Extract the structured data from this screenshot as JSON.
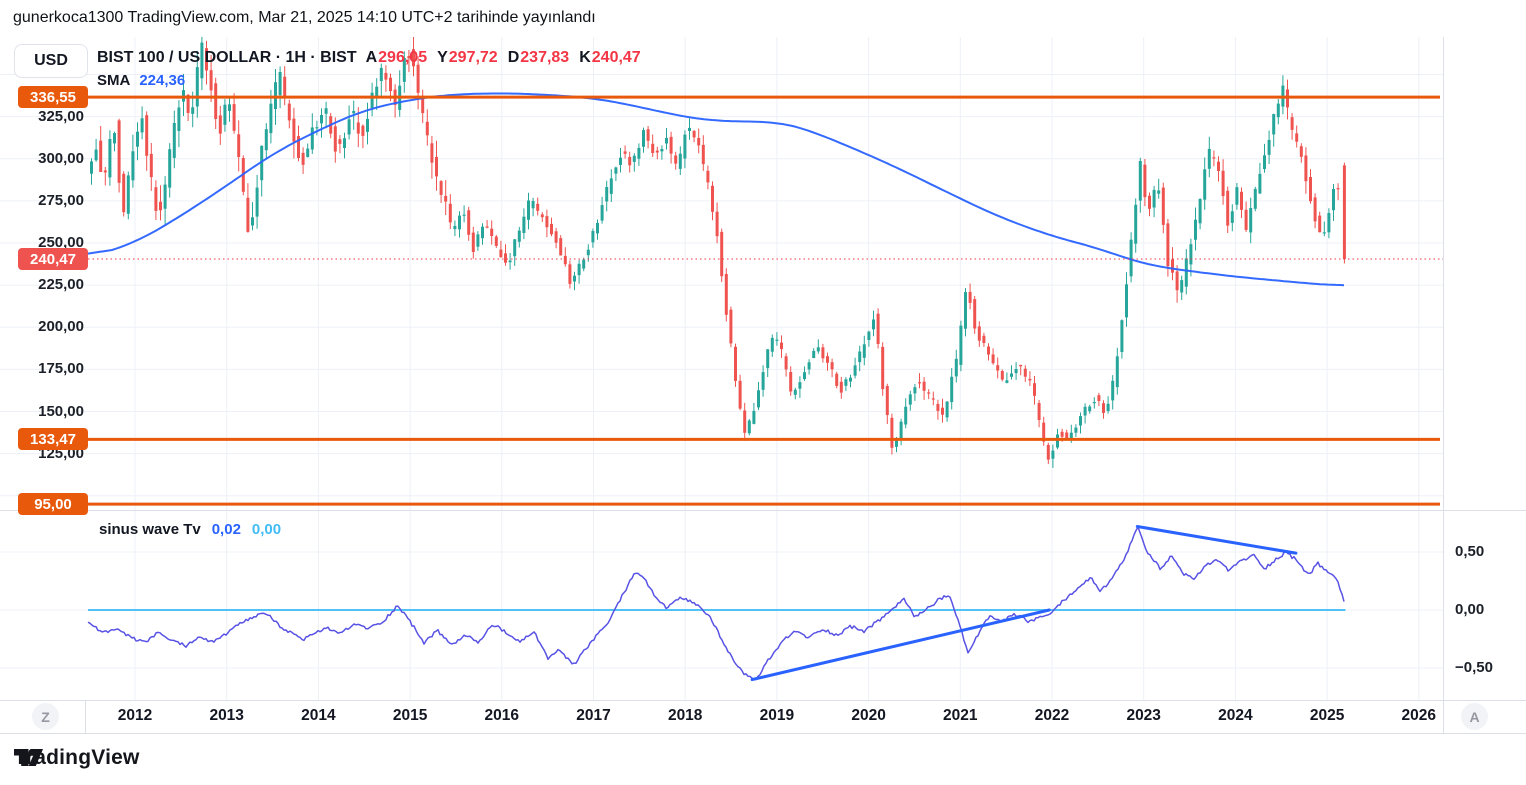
{
  "header": {
    "published": "gunerkoca1300 TradingView.com, Mar 21, 2025 14:10 UTC+2 tarihinde yayınlandı"
  },
  "toolbar": {
    "currency": "USD"
  },
  "legend": {
    "symbol": "BIST 100 / US DOLLAR · 1H · BIST",
    "ohlc": [
      {
        "k": "A",
        "v": "296,05"
      },
      {
        "k": "Y",
        "v": "297,72"
      },
      {
        "k": "D",
        "v": "237,83"
      },
      {
        "k": "K",
        "v": "240,47"
      }
    ],
    "sma_label": "SMA",
    "sma_value": "224,36"
  },
  "indicator_legend": {
    "name": "sinus wave Tv",
    "value1": "0,02",
    "value2": "0,00"
  },
  "x_axis": {
    "left_button": "Z",
    "right_button": "A",
    "years": [
      2012,
      2013,
      2014,
      2015,
      2016,
      2017,
      2018,
      2019,
      2020,
      2021,
      2022,
      2023,
      2024,
      2025,
      2026
    ]
  },
  "footer": {
    "brand": "TradingView"
  },
  "colors": {
    "up": "#26a69a",
    "down": "#ef5350",
    "sma": "#2962ff",
    "wave": "#5853e4",
    "trend": "#2962ff",
    "zero_line": "#4fc3f7",
    "level": "#e8590c",
    "last": "#f23645",
    "last_badge": "#ef5350",
    "grid": "#edf0f7",
    "border": "#dcdfe6",
    "text": "#131722"
  },
  "chart_data": {
    "type": "candlestick+line",
    "title": "BIST 100 / US DOLLAR · 1H · BIST",
    "x_domain": [
      2011.5,
      2026.2
    ],
    "x_ticks": [
      2012,
      2013,
      2014,
      2015,
      2016,
      2017,
      2018,
      2019,
      2020,
      2021,
      2022,
      2023,
      2024,
      2025,
      2026
    ],
    "main_pane": {
      "y_range": [
        93,
        372
      ],
      "grid_step": 25,
      "price_labels": [
        {
          "value": 325,
          "label": "325,00"
        },
        {
          "value": 300,
          "label": "300,00"
        },
        {
          "value": 275,
          "label": "275,00"
        },
        {
          "value": 250,
          "label": "250,00"
        },
        {
          "value": 225,
          "label": "225,00"
        },
        {
          "value": 200,
          "label": "200,00"
        },
        {
          "value": 175,
          "label": "175,00"
        },
        {
          "value": 150,
          "label": "150,00"
        },
        {
          "value": 125,
          "label": "125,00"
        }
      ],
      "levels": [
        {
          "value": 336.55,
          "label": "336,55"
        },
        {
          "value": 133.47,
          "label": "133,47"
        },
        {
          "value": 95.0,
          "label": "95,00"
        }
      ],
      "last_price": {
        "value": 240.47,
        "label": "240,47"
      },
      "last_candle": {
        "open": 296.05,
        "high": 297.72,
        "low": 237.83,
        "close": 240.47
      },
      "sma_value": 224.36,
      "price_path": [
        [
          2011.52,
          290
        ],
        [
          2011.6,
          310
        ],
        [
          2011.7,
          285
        ],
        [
          2011.8,
          325
        ],
        [
          2011.9,
          265
        ],
        [
          2012.0,
          300
        ],
        [
          2012.1,
          330
        ],
        [
          2012.2,
          290
        ],
        [
          2012.3,
          262
        ],
        [
          2012.42,
          305
        ],
        [
          2012.55,
          345
        ],
        [
          2012.65,
          320
        ],
        [
          2012.75,
          370
        ],
        [
          2012.85,
          345
        ],
        [
          2012.95,
          315
        ],
        [
          2013.05,
          335
        ],
        [
          2013.15,
          305
        ],
        [
          2013.28,
          255
        ],
        [
          2013.4,
          300
        ],
        [
          2013.5,
          330
        ],
        [
          2013.62,
          350
        ],
        [
          2013.72,
          320
        ],
        [
          2013.85,
          295
        ],
        [
          2013.95,
          312
        ],
        [
          2014.1,
          330
        ],
        [
          2014.25,
          302
        ],
        [
          2014.4,
          328
        ],
        [
          2014.5,
          310
        ],
        [
          2014.62,
          338
        ],
        [
          2014.75,
          355
        ],
        [
          2014.88,
          330
        ],
        [
          2015.0,
          368
        ],
        [
          2015.1,
          345
        ],
        [
          2015.2,
          315
        ],
        [
          2015.35,
          285
        ],
        [
          2015.5,
          255
        ],
        [
          2015.6,
          272
        ],
        [
          2015.72,
          246
        ],
        [
          2015.85,
          262
        ],
        [
          2015.95,
          250
        ],
        [
          2016.1,
          238
        ],
        [
          2016.22,
          258
        ],
        [
          2016.35,
          276
        ],
        [
          2016.5,
          262
        ],
        [
          2016.62,
          252
        ],
        [
          2016.78,
          226
        ],
        [
          2016.9,
          238
        ],
        [
          2017.05,
          258
        ],
        [
          2017.2,
          285
        ],
        [
          2017.35,
          305
        ],
        [
          2017.45,
          295
        ],
        [
          2017.58,
          318
        ],
        [
          2017.7,
          300
        ],
        [
          2017.82,
          312
        ],
        [
          2017.95,
          292
        ],
        [
          2018.05,
          322
        ],
        [
          2018.15,
          312
        ],
        [
          2018.28,
          285
        ],
        [
          2018.38,
          255
        ],
        [
          2018.48,
          210
        ],
        [
          2018.58,
          168
        ],
        [
          2018.68,
          136
        ],
        [
          2018.78,
          152
        ],
        [
          2018.88,
          175
        ],
        [
          2019.0,
          198
        ],
        [
          2019.1,
          182
        ],
        [
          2019.2,
          158
        ],
        [
          2019.32,
          172
        ],
        [
          2019.45,
          188
        ],
        [
          2019.6,
          178
        ],
        [
          2019.72,
          162
        ],
        [
          2019.85,
          172
        ],
        [
          2020.0,
          192
        ],
        [
          2020.1,
          208
        ],
        [
          2020.2,
          158
        ],
        [
          2020.3,
          127
        ],
        [
          2020.42,
          150
        ],
        [
          2020.55,
          168
        ],
        [
          2020.7,
          158
        ],
        [
          2020.85,
          148
        ],
        [
          2021.0,
          182
        ],
        [
          2021.1,
          226
        ],
        [
          2021.2,
          198
        ],
        [
          2021.35,
          182
        ],
        [
          2021.5,
          168
        ],
        [
          2021.65,
          178
        ],
        [
          2021.8,
          168
        ],
        [
          2021.9,
          142
        ],
        [
          2022.0,
          119
        ],
        [
          2022.1,
          138
        ],
        [
          2022.22,
          132
        ],
        [
          2022.35,
          148
        ],
        [
          2022.5,
          158
        ],
        [
          2022.62,
          148
        ],
        [
          2022.72,
          172
        ],
        [
          2022.82,
          215
        ],
        [
          2022.92,
          262
        ],
        [
          2023.0,
          298
        ],
        [
          2023.08,
          268
        ],
        [
          2023.18,
          288
        ],
        [
          2023.3,
          238
        ],
        [
          2023.42,
          218
        ],
        [
          2023.55,
          252
        ],
        [
          2023.65,
          278
        ],
        [
          2023.75,
          304
        ],
        [
          2023.85,
          294
        ],
        [
          2023.95,
          262
        ],
        [
          2024.05,
          280
        ],
        [
          2024.15,
          257
        ],
        [
          2024.3,
          294
        ],
        [
          2024.45,
          324
        ],
        [
          2024.55,
          344
        ],
        [
          2024.63,
          318
        ],
        [
          2024.72,
          308
        ],
        [
          2024.82,
          283
        ],
        [
          2024.92,
          260
        ],
        [
          2025.0,
          252
        ],
        [
          2025.07,
          274
        ],
        [
          2025.14,
          291
        ],
        [
          2025.2,
          240.47
        ]
      ],
      "sma_path": [
        [
          2011.52,
          242
        ],
        [
          2012.0,
          250
        ],
        [
          2012.5,
          266
        ],
        [
          2013.0,
          284
        ],
        [
          2013.5,
          303
        ],
        [
          2014.0,
          317
        ],
        [
          2014.5,
          329
        ],
        [
          2015.0,
          335
        ],
        [
          2015.4,
          338
        ],
        [
          2016.0,
          339
        ],
        [
          2016.5,
          338
        ],
        [
          2017.0,
          336
        ],
        [
          2017.4,
          332
        ],
        [
          2017.8,
          327
        ],
        [
          2018.2,
          323
        ],
        [
          2018.6,
          322
        ],
        [
          2019.0,
          322
        ],
        [
          2019.3,
          318
        ],
        [
          2019.8,
          307
        ],
        [
          2020.3,
          295
        ],
        [
          2020.9,
          279
        ],
        [
          2021.4,
          266
        ],
        [
          2022.0,
          254
        ],
        [
          2022.5,
          247
        ],
        [
          2022.85,
          240
        ],
        [
          2023.1,
          236.5
        ],
        [
          2023.4,
          234
        ],
        [
          2023.7,
          232
        ],
        [
          2024.0,
          230
        ],
        [
          2024.4,
          228
        ],
        [
          2024.8,
          226
        ],
        [
          2025.2,
          224.36
        ]
      ],
      "volatility_bands": [
        [
          2011.5,
          10
        ],
        [
          2015.4,
          6
        ],
        [
          2018.45,
          5.5
        ],
        [
          2022.75,
          7.5
        ]
      ]
    },
    "indicator_pane": {
      "name": "sinus wave Tv",
      "current_values": [
        0.02,
        0.0
      ],
      "y_range": [
        -0.8,
        0.85
      ],
      "ticks": [
        {
          "value": 0.5,
          "label": "0,50"
        },
        {
          "value": 0.0,
          "label": "0,00"
        },
        {
          "value": -0.5,
          "label": "−0,50"
        }
      ],
      "zero_line": 0.0,
      "wave_path": [
        [
          2011.5,
          -0.1
        ],
        [
          2011.65,
          -0.2
        ],
        [
          2011.8,
          -0.16
        ],
        [
          2011.95,
          -0.24
        ],
        [
          2012.1,
          -0.28
        ],
        [
          2012.25,
          -0.2
        ],
        [
          2012.4,
          -0.26
        ],
        [
          2012.55,
          -0.31
        ],
        [
          2012.7,
          -0.23
        ],
        [
          2012.85,
          -0.28
        ],
        [
          2013.0,
          -0.2
        ],
        [
          2013.15,
          -0.12
        ],
        [
          2013.3,
          -0.06
        ],
        [
          2013.42,
          -0.02
        ],
        [
          2013.55,
          -0.12
        ],
        [
          2013.7,
          -0.2
        ],
        [
          2013.82,
          -0.26
        ],
        [
          2013.95,
          -0.2
        ],
        [
          2014.1,
          -0.16
        ],
        [
          2014.25,
          -0.2
        ],
        [
          2014.4,
          -0.12
        ],
        [
          2014.55,
          -0.16
        ],
        [
          2014.7,
          -0.1
        ],
        [
          2014.87,
          0.04
        ],
        [
          2015.0,
          -0.1
        ],
        [
          2015.15,
          -0.28
        ],
        [
          2015.3,
          -0.18
        ],
        [
          2015.45,
          -0.3
        ],
        [
          2015.6,
          -0.22
        ],
        [
          2015.75,
          -0.28
        ],
        [
          2015.9,
          -0.12
        ],
        [
          2016.05,
          -0.2
        ],
        [
          2016.2,
          -0.28
        ],
        [
          2016.35,
          -0.18
        ],
        [
          2016.5,
          -0.42
        ],
        [
          2016.62,
          -0.34
        ],
        [
          2016.78,
          -0.48
        ],
        [
          2016.95,
          -0.3
        ],
        [
          2017.15,
          -0.12
        ],
        [
          2017.3,
          0.1
        ],
        [
          2017.45,
          0.33
        ],
        [
          2017.55,
          0.28
        ],
        [
          2017.68,
          0.1
        ],
        [
          2017.8,
          0.02
        ],
        [
          2017.95,
          0.1
        ],
        [
          2018.1,
          0.06
        ],
        [
          2018.25,
          -0.04
        ],
        [
          2018.4,
          -0.25
        ],
        [
          2018.55,
          -0.48
        ],
        [
          2018.68,
          -0.57
        ],
        [
          2018.78,
          -0.6
        ],
        [
          2018.9,
          -0.44
        ],
        [
          2019.05,
          -0.28
        ],
        [
          2019.2,
          -0.18
        ],
        [
          2019.35,
          -0.24
        ],
        [
          2019.5,
          -0.16
        ],
        [
          2019.65,
          -0.22
        ],
        [
          2019.8,
          -0.14
        ],
        [
          2019.95,
          -0.18
        ],
        [
          2020.1,
          -0.1
        ],
        [
          2020.25,
          0.0
        ],
        [
          2020.38,
          0.1
        ],
        [
          2020.5,
          -0.06
        ],
        [
          2020.62,
          0.0
        ],
        [
          2020.75,
          0.08
        ],
        [
          2020.88,
          0.13
        ],
        [
          2021.0,
          -0.15
        ],
        [
          2021.08,
          -0.37
        ],
        [
          2021.2,
          -0.2
        ],
        [
          2021.32,
          -0.05
        ],
        [
          2021.45,
          -0.1
        ],
        [
          2021.6,
          -0.04
        ],
        [
          2021.75,
          -0.1
        ],
        [
          2021.9,
          -0.06
        ],
        [
          2022.0,
          -0.02
        ],
        [
          2022.15,
          0.1
        ],
        [
          2022.3,
          0.2
        ],
        [
          2022.42,
          0.28
        ],
        [
          2022.52,
          0.16
        ],
        [
          2022.65,
          0.26
        ],
        [
          2022.8,
          0.45
        ],
        [
          2022.93,
          0.72
        ],
        [
          2023.05,
          0.48
        ],
        [
          2023.18,
          0.36
        ],
        [
          2023.3,
          0.46
        ],
        [
          2023.42,
          0.32
        ],
        [
          2023.55,
          0.27
        ],
        [
          2023.68,
          0.38
        ],
        [
          2023.8,
          0.44
        ],
        [
          2023.92,
          0.34
        ],
        [
          2024.05,
          0.42
        ],
        [
          2024.2,
          0.47
        ],
        [
          2024.32,
          0.36
        ],
        [
          2024.45,
          0.44
        ],
        [
          2024.55,
          0.5
        ],
        [
          2024.68,
          0.42
        ],
        [
          2024.8,
          0.3
        ],
        [
          2024.9,
          0.4
        ],
        [
          2025.0,
          0.33
        ],
        [
          2025.1,
          0.28
        ],
        [
          2025.17,
          0.12
        ],
        [
          2025.2,
          0.02
        ]
      ],
      "trendlines": [
        {
          "from": [
            2018.73,
            -0.6
          ],
          "to": [
            2021.97,
            0.0
          ]
        },
        {
          "from": [
            2022.93,
            0.72
          ],
          "to": [
            2024.66,
            0.49
          ]
        }
      ]
    }
  }
}
